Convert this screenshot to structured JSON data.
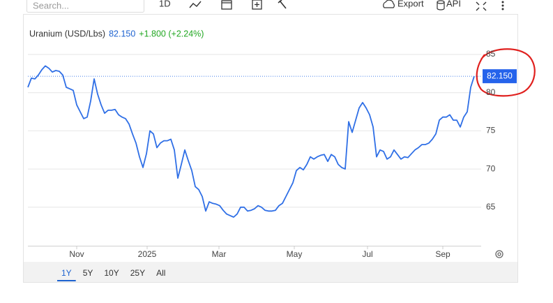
{
  "toolbar": {
    "search": "Search...",
    "interval": "1D",
    "export": "Export",
    "api": "API"
  },
  "header": {
    "title": "Uranium (USD/Lbs)",
    "price": "82.150",
    "change": "+1.800 (+2.24%)"
  },
  "chart_data": {
    "type": "line",
    "color": "#2f6fe6",
    "values": [
      80.7,
      81.9,
      81.8,
      82.3,
      83.0,
      83.5,
      83.2,
      82.7,
      82.9,
      82.8,
      82.3,
      80.7,
      80.5,
      80.3,
      78.4,
      77.5,
      76.6,
      76.8,
      78.9,
      81.8,
      79.8,
      78.4,
      77.3,
      77.7,
      77.7,
      77.8,
      77.1,
      76.8,
      76.6,
      75.9,
      74.6,
      73.4,
      71.6,
      70.2,
      72.0,
      75.0,
      74.6,
      72.8,
      73.4,
      73.7,
      73.7,
      73.9,
      72.5,
      68.8,
      70.6,
      72.5,
      71.1,
      69.8,
      67.7,
      67.3,
      66.4,
      64.5,
      65.7,
      65.5,
      65.4,
      65.2,
      64.6,
      64.1,
      63.9,
      63.7,
      64.1,
      65.0,
      65.0,
      64.5,
      64.6,
      64.8,
      65.2,
      65.0,
      64.6,
      64.5,
      64.5,
      64.6,
      65.2,
      65.5,
      66.4,
      67.3,
      68.2,
      69.8,
      70.2,
      69.9,
      70.6,
      71.6,
      71.3,
      71.6,
      71.8,
      71.9,
      71.0,
      71.9,
      71.6,
      70.6,
      70.2,
      70.0,
      76.2,
      74.8,
      76.4,
      78.0,
      78.7,
      78.0,
      77.1,
      75.5,
      71.6,
      72.5,
      72.3,
      71.3,
      71.6,
      72.5,
      71.9,
      71.3,
      71.6,
      71.5,
      72.0,
      72.5,
      72.8,
      73.2,
      73.2,
      73.4,
      73.9,
      74.6,
      76.4,
      76.8,
      76.8,
      77.1,
      76.4,
      76.4,
      75.5,
      76.8,
      77.5,
      80.7,
      82.15
    ],
    "last_label": "82.150",
    "ylim": [
      60,
      85
    ],
    "yticks": [
      65,
      70,
      75,
      80,
      85
    ],
    "xlim": [
      0,
      130
    ],
    "xticks": [
      {
        "value": 14,
        "label": "Nov"
      },
      {
        "value": 34.2,
        "label": "2025"
      },
      {
        "value": 54.8,
        "label": "Mar"
      },
      {
        "value": 76.4,
        "label": "May"
      },
      {
        "value": 97.4,
        "label": "Jul"
      },
      {
        "value": 119,
        "label": "Sep"
      }
    ],
    "grid": true
  },
  "ranges": [
    "1Y",
    "5Y",
    "10Y",
    "25Y",
    "All"
  ],
  "selected_range": "1Y"
}
